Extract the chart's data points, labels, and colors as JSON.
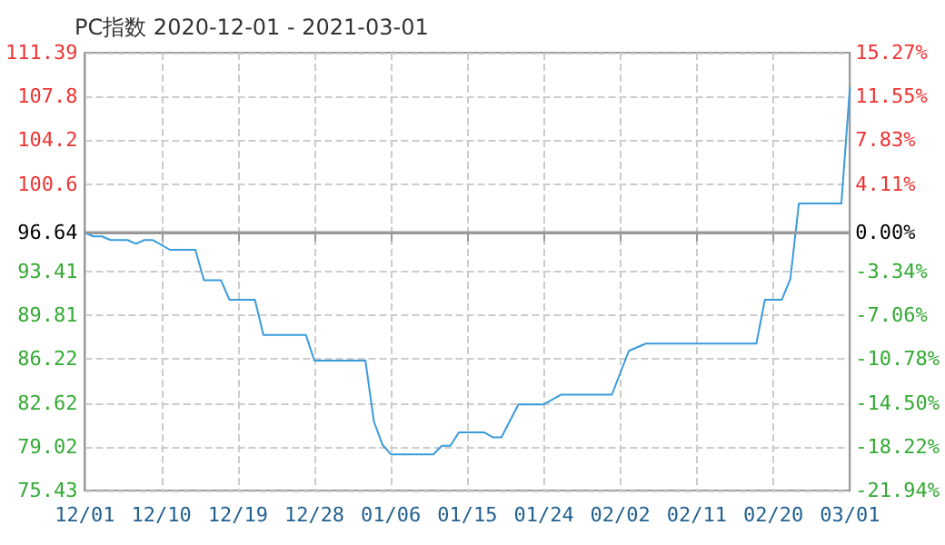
{
  "chart_data": {
    "type": "line",
    "title": "PC指数 2020-12-01 - 2021-03-01",
    "x": [
      "2020-12-01",
      "2020-12-02",
      "2020-12-03",
      "2020-12-04",
      "2020-12-06",
      "2020-12-07",
      "2020-12-08",
      "2020-12-09",
      "2020-12-11",
      "2020-12-14",
      "2020-12-15",
      "2020-12-17",
      "2020-12-18",
      "2020-12-21",
      "2020-12-22",
      "2020-12-27",
      "2020-12-28",
      "2021-01-03",
      "2021-01-04",
      "2021-01-05",
      "2021-01-06",
      "2021-01-11",
      "2021-01-12",
      "2021-01-13",
      "2021-01-14",
      "2021-01-17",
      "2021-01-18",
      "2021-01-19",
      "2021-01-21",
      "2021-01-24",
      "2021-01-26",
      "2021-02-01",
      "2021-02-03",
      "2021-02-05",
      "2021-02-18",
      "2021-02-19",
      "2021-02-21",
      "2021-02-22",
      "2021-02-23",
      "2021-02-28",
      "2021-03-01"
    ],
    "series": [
      {
        "color": "#3a9bdb",
        "values": [
          96.6,
          96.3,
          96.3,
          96.0,
          96.0,
          95.7,
          96.0,
          96.0,
          95.2,
          95.2,
          92.7,
          92.7,
          91.1,
          91.1,
          88.2,
          88.2,
          86.1,
          86.1,
          81.1,
          79.2,
          78.4,
          78.4,
          79.1,
          79.1,
          80.2,
          80.2,
          79.8,
          79.8,
          82.5,
          82.5,
          83.3,
          83.3,
          86.9,
          87.5,
          87.5,
          91.1,
          91.1,
          92.8,
          99.0,
          99.0,
          108.5
        ]
      }
    ],
    "xlim": [
      "2020-12-01",
      "2021-03-01"
    ],
    "xticks": [
      {
        "value": "2020-12-01",
        "label": "12/01"
      },
      {
        "value": "2020-12-10",
        "label": "12/10"
      },
      {
        "value": "2020-12-19",
        "label": "12/19"
      },
      {
        "value": "2020-12-28",
        "label": "12/28"
      },
      {
        "value": "2021-01-06",
        "label": "01/06"
      },
      {
        "value": "2021-01-15",
        "label": "01/15"
      },
      {
        "value": "2021-01-24",
        "label": "01/24"
      },
      {
        "value": "2021-02-02",
        "label": "02/02"
      },
      {
        "value": "2021-02-11",
        "label": "02/11"
      },
      {
        "value": "2021-02-20",
        "label": "02/20"
      },
      {
        "value": "2021-03-01",
        "label": "03/01"
      }
    ],
    "ylim": [
      75.43,
      111.39
    ],
    "yticks": [
      75.43,
      79.02,
      82.62,
      86.22,
      89.81,
      93.41,
      96.64,
      100.6,
      104.2,
      107.8,
      111.39
    ],
    "y2lim": [
      -21.94,
      15.27
    ],
    "y2ticks": [
      {
        "value": -21.94,
        "label": "-21.94%"
      },
      {
        "value": -18.22,
        "label": "-18.22%"
      },
      {
        "value": -14.5,
        "label": "-14.50%"
      },
      {
        "value": -10.78,
        "label": "-10.78%"
      },
      {
        "value": -7.06,
        "label": "-7.06%"
      },
      {
        "value": -3.34,
        "label": "-3.34%"
      },
      {
        "value": 0,
        "label": "0.00%"
      },
      {
        "value": 4.11,
        "label": "4.11%"
      },
      {
        "value": 7.83,
        "label": "7.83%"
      },
      {
        "value": 11.55,
        "label": "11.55%"
      },
      {
        "value": 15.27,
        "label": "15.27%"
      }
    ],
    "ref_lines": [
      {
        "axis": "y",
        "value": 96.64,
        "color": "#999999"
      }
    ],
    "grid": true,
    "marker": "none",
    "line_style": "solid"
  }
}
